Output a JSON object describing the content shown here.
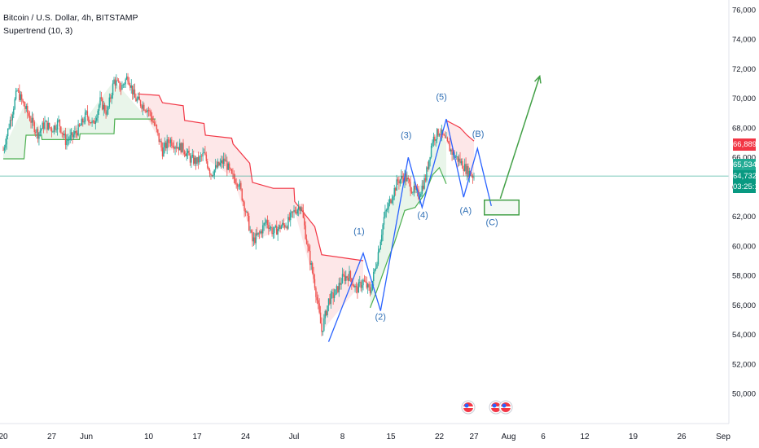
{
  "header": {
    "symbol_line": "Bitcoin / U.S. Dollar, 4h, BITSTAMP",
    "indicator_line": "Supertrend (10, 3)"
  },
  "price_tags": {
    "supertrend_down": {
      "value": "66,889",
      "price": 66889,
      "color": "#f23645"
    },
    "supertrend_up": {
      "value": "65,534",
      "price": 65534,
      "color": "#22ab94"
    },
    "last": {
      "value": "64,732",
      "countdown": "03:25:11",
      "price": 64732,
      "color": "#089981"
    }
  },
  "colors": {
    "up": "#26a69a",
    "down": "#ef5350",
    "wave": "#2962ff",
    "wave_label": "#2f6fb5",
    "target": "#43a047",
    "st_up": "#4caf50",
    "st_down": "#f23645"
  },
  "chart_data": {
    "type": "candlestick",
    "ylim": [
      49000,
      76500
    ],
    "y_ticks": [
      50000,
      52000,
      54000,
      56000,
      58000,
      60000,
      62000,
      64000,
      66000,
      68000,
      70000,
      72000,
      74000,
      76000
    ],
    "y_tick_labels": [
      "50,000",
      "52,000",
      "54,000",
      "56,000",
      "58,000",
      "60,000",
      "62,000",
      "64,000",
      "66,000",
      "68,000",
      "70,000",
      "72,000",
      "74,000",
      "76,000"
    ],
    "x_ticks": [
      {
        "day": 0,
        "label": "20"
      },
      {
        "day": 7,
        "label": "27"
      },
      {
        "day": 12,
        "label": "Jun"
      },
      {
        "day": 21,
        "label": "10"
      },
      {
        "day": 28,
        "label": "17"
      },
      {
        "day": 35,
        "label": "24"
      },
      {
        "day": 42,
        "label": "Jul"
      },
      {
        "day": 49,
        "label": "8"
      },
      {
        "day": 56,
        "label": "15"
      },
      {
        "day": 63,
        "label": "22"
      },
      {
        "day": 68,
        "label": "27"
      },
      {
        "day": 73,
        "label": "Aug"
      },
      {
        "day": 78,
        "label": "6"
      },
      {
        "day": 84,
        "label": "12"
      },
      {
        "day": 91,
        "label": "19"
      },
      {
        "day": 98,
        "label": "26"
      },
      {
        "day": 104,
        "label": "Sep"
      }
    ],
    "price_path": [
      [
        0,
        66500
      ],
      [
        1,
        68500
      ],
      [
        2,
        70500
      ],
      [
        3,
        69500
      ],
      [
        4,
        68500
      ],
      [
        5,
        67600
      ],
      [
        6,
        68300
      ],
      [
        7,
        67900
      ],
      [
        8,
        68400
      ],
      [
        9,
        67100
      ],
      [
        10,
        67400
      ],
      [
        11,
        68000
      ],
      [
        12,
        68900
      ],
      [
        13,
        68200
      ],
      [
        14,
        69800
      ],
      [
        15,
        69000
      ],
      [
        16,
        71200
      ],
      [
        17,
        70700
      ],
      [
        18,
        71500
      ],
      [
        19,
        70000
      ],
      [
        20,
        69600
      ],
      [
        21,
        69200
      ],
      [
        22,
        68000
      ],
      [
        23,
        66400
      ],
      [
        24,
        67200
      ],
      [
        25,
        66800
      ],
      [
        26,
        66600
      ],
      [
        27,
        65900
      ],
      [
        28,
        65700
      ],
      [
        29,
        66200
      ],
      [
        30,
        64900
      ],
      [
        31,
        65400
      ],
      [
        32,
        65800
      ],
      [
        33,
        64700
      ],
      [
        34,
        64300
      ],
      [
        35,
        62400
      ],
      [
        36,
        60300
      ],
      [
        37,
        60800
      ],
      [
        38,
        61700
      ],
      [
        39,
        60900
      ],
      [
        40,
        61300
      ],
      [
        41,
        61500
      ],
      [
        42,
        62300
      ],
      [
        43,
        62800
      ],
      [
        44,
        59800
      ],
      [
        45,
        57400
      ],
      [
        46,
        54200
      ],
      [
        47,
        56300
      ],
      [
        48,
        56800
      ],
      [
        49,
        57800
      ],
      [
        50,
        58000
      ],
      [
        51,
        57000
      ],
      [
        52,
        57600
      ],
      [
        53,
        56900
      ],
      [
        54,
        59100
      ],
      [
        55,
        61900
      ],
      [
        56,
        63200
      ],
      [
        57,
        64400
      ],
      [
        58,
        64700
      ],
      [
        59,
        63900
      ],
      [
        60,
        63400
      ],
      [
        61,
        64600
      ],
      [
        62,
        67200
      ],
      [
        63,
        67800
      ],
      [
        64,
        67000
      ],
      [
        65,
        66200
      ],
      [
        66,
        65700
      ],
      [
        67,
        65100
      ],
      [
        68,
        64700
      ]
    ],
    "supertrend_up": [
      [
        0,
        65900
      ],
      [
        3,
        65900
      ],
      [
        3.3,
        67500
      ],
      [
        5.5,
        67500
      ],
      [
        5.6,
        67200
      ],
      [
        11,
        67200
      ],
      [
        11.1,
        67600
      ],
      [
        16,
        67600
      ],
      [
        16.1,
        68600
      ],
      [
        22,
        68600
      ]
    ],
    "supertrend_down": [
      [
        19.5,
        70300
      ],
      [
        22.5,
        70200
      ],
      [
        23,
        69700
      ],
      [
        26,
        69500
      ],
      [
        26.2,
        68500
      ],
      [
        29,
        68300
      ],
      [
        29.2,
        67500
      ],
      [
        33,
        67300
      ],
      [
        33.2,
        66900
      ],
      [
        35.6,
        65600
      ],
      [
        36,
        64300
      ],
      [
        39,
        63900
      ],
      [
        42,
        63900
      ],
      [
        42.1,
        63000
      ],
      [
        45,
        61300
      ],
      [
        46,
        59400
      ],
      [
        52,
        59000
      ]
    ],
    "supertrend_up_2": [
      [
        53,
        55800
      ],
      [
        54,
        57000
      ],
      [
        55.5,
        59000
      ],
      [
        56.5,
        60200
      ],
      [
        58,
        62400
      ],
      [
        59.5,
        62600
      ],
      [
        61,
        63600
      ],
      [
        62,
        64800
      ],
      [
        63,
        65300
      ],
      [
        64,
        64200
      ]
    ],
    "supertrend_down_2": [
      [
        64,
        68500
      ],
      [
        66,
        68000
      ],
      [
        67,
        67500
      ],
      [
        68,
        67100
      ]
    ],
    "wave_path": [
      [
        47,
        53500
      ],
      [
        52,
        59500
      ],
      [
        54.5,
        55600
      ],
      [
        58.5,
        66000
      ],
      [
        60.5,
        62600
      ],
      [
        64,
        68600
      ],
      [
        66.5,
        63300
      ],
      [
        68.5,
        66600
      ],
      [
        70.5,
        62700
      ]
    ],
    "wave_labels": [
      {
        "day": 51.4,
        "price": 60800,
        "text": "(1)"
      },
      {
        "day": 54.5,
        "price": 55000,
        "text": "(2)"
      },
      {
        "day": 58.2,
        "price": 67300,
        "text": "(3)"
      },
      {
        "day": 60.6,
        "price": 61900,
        "text": "(4)"
      },
      {
        "day": 63.3,
        "price": 69900,
        "text": "(5)"
      },
      {
        "day": 66.8,
        "price": 62200,
        "text": "(A)"
      },
      {
        "day": 68.6,
        "price": 67400,
        "text": "(B)"
      },
      {
        "day": 70.6,
        "price": 61400,
        "text": "(C)"
      }
    ],
    "target_box": {
      "day_start": 69.5,
      "day_end": 74.5,
      "price_low": 62100,
      "price_high": 63100
    },
    "target_arrow": {
      "from": [
        71.8,
        63200
      ],
      "to": [
        77.5,
        71500
      ]
    },
    "horizontal_line_price": 64732
  }
}
